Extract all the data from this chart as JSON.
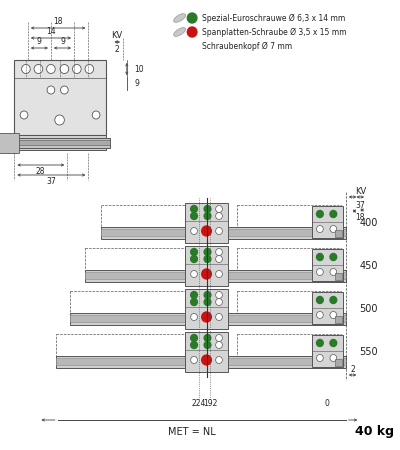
{
  "bg_color": "#ffffff",
  "line_color": "#555555",
  "dim_color": "#444444",
  "green_color": "#2a7a2a",
  "red_color": "#cc1111",
  "legend_screw1_text": "Spezial-Euroschrauwe Ø 6,3 x 14 mm",
  "legend_screw2_text": "Spanplatten-Schraube Ø 3,5 x 15 mm",
  "legend_screw3_text": "Schraubenkopf Ø 7 mm",
  "bottom_label": "MET = NL",
  "weight_label": "40 kg",
  "lengths": [
    "400",
    "450",
    "500",
    "550"
  ]
}
